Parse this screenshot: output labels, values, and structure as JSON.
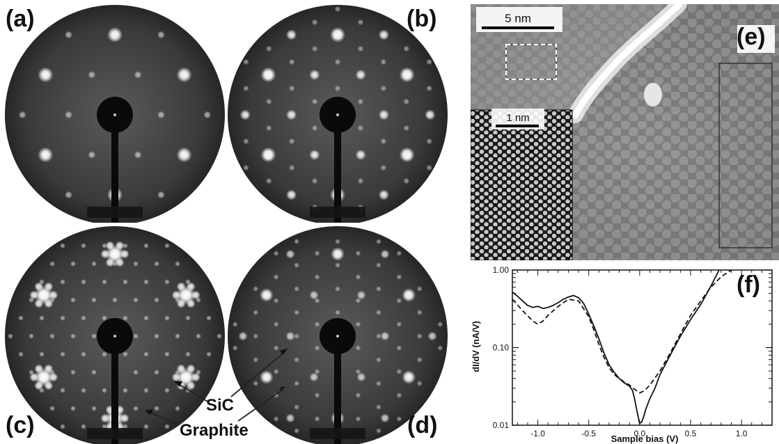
{
  "panels": {
    "a": "(a)",
    "b": "(b)",
    "c": "(c)",
    "d": "(d)",
    "e": "(e)",
    "f": "(f)"
  },
  "annotations": {
    "sic": "SiC",
    "graphite": "Graphite"
  },
  "stm": {
    "scale_main": "5 nm",
    "scale_inset": "1 nm"
  },
  "chart_data": {
    "type": "line",
    "xlabel": "Sample bias (V)",
    "ylabel": "dI/dV (nA/V)",
    "xlim": [
      -1.25,
      1.3
    ],
    "ylim": [
      0.01,
      1.0
    ],
    "yscale": "log",
    "xticks": [
      "-1.0",
      "-0.5",
      "0.0",
      "0.5",
      "1.0"
    ],
    "xtick_values": [
      -1.0,
      -0.5,
      0.0,
      0.5,
      1.0
    ],
    "yticks": [
      "0.01",
      "0.10",
      "1.00"
    ],
    "ytick_values": [
      0.01,
      0.1,
      1.0
    ],
    "series": [
      {
        "style": "solid",
        "x": [
          -1.25,
          -1.2,
          -1.15,
          -1.1,
          -1.05,
          -1.0,
          -0.95,
          -0.9,
          -0.85,
          -0.8,
          -0.75,
          -0.7,
          -0.65,
          -0.6,
          -0.55,
          -0.5,
          -0.45,
          -0.4,
          -0.35,
          -0.3,
          -0.25,
          -0.2,
          -0.15,
          -0.1,
          -0.07,
          -0.05,
          -0.03,
          -0.01,
          0.0,
          0.02,
          0.04,
          0.06,
          0.1,
          0.15,
          0.2,
          0.3,
          0.4,
          0.5,
          0.6,
          0.7,
          0.78
        ],
        "y": [
          0.52,
          0.46,
          0.4,
          0.35,
          0.33,
          0.34,
          0.32,
          0.33,
          0.35,
          0.38,
          0.42,
          0.45,
          0.47,
          0.44,
          0.37,
          0.27,
          0.19,
          0.13,
          0.085,
          0.06,
          0.048,
          0.04,
          0.035,
          0.032,
          0.028,
          0.022,
          0.016,
          0.012,
          0.0105,
          0.011,
          0.013,
          0.016,
          0.022,
          0.03,
          0.045,
          0.08,
          0.14,
          0.23,
          0.36,
          0.62,
          1.0
        ]
      },
      {
        "style": "dashed",
        "x": [
          -1.25,
          -1.15,
          -1.05,
          -1.0,
          -0.95,
          -0.9,
          -0.8,
          -0.7,
          -0.6,
          -0.5,
          -0.45,
          -0.4,
          -0.35,
          -0.3,
          -0.25,
          -0.2,
          -0.15,
          -0.1,
          -0.05,
          0.0,
          0.05,
          0.1,
          0.2,
          0.3,
          0.4,
          0.5,
          0.6,
          0.7,
          0.8,
          0.9
        ],
        "y": [
          0.42,
          0.3,
          0.22,
          0.2,
          0.22,
          0.26,
          0.34,
          0.42,
          0.4,
          0.25,
          0.17,
          0.11,
          0.075,
          0.055,
          0.045,
          0.04,
          0.036,
          0.033,
          0.029,
          0.026,
          0.028,
          0.033,
          0.05,
          0.085,
          0.15,
          0.26,
          0.4,
          0.6,
          0.82,
          1.0
        ]
      }
    ]
  }
}
